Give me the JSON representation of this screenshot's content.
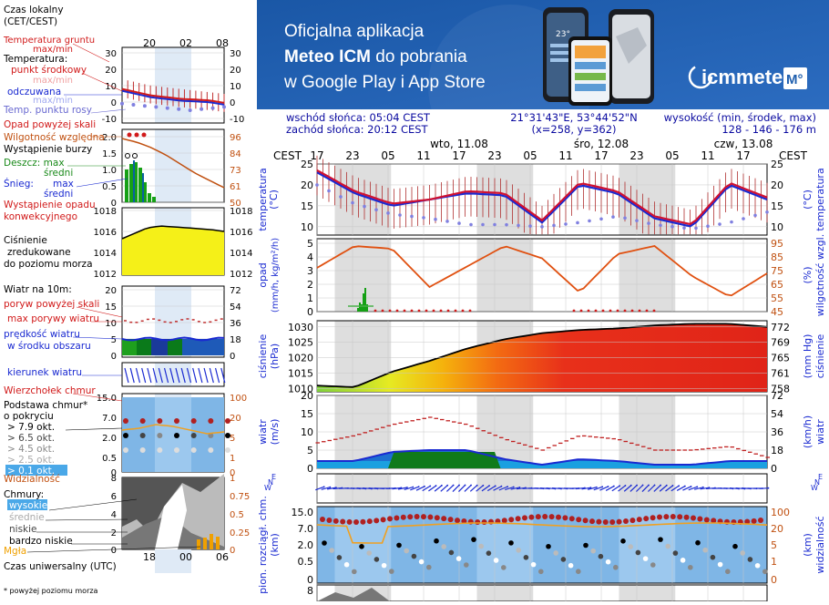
{
  "banner": {
    "line1": "Oficjalna aplikacja",
    "line2a": "Meteo ICM",
    "line2b": " do pobrania",
    "line3": "w Google Play i App Store",
    "logo_text": "icmmeteo",
    "badge": "M°",
    "phone_temp": "23°",
    "bg_color": "#1f5fae"
  },
  "info": {
    "sunrise": "wschód słońca: 05:04 CEST",
    "sunset": "zachód słońca: 20:12 CEST",
    "coords": "21°31'43\"E, 53°44'52\"N",
    "grid": "(x=258,  y=362)",
    "elev_label": "wysokość (min, środek, max)",
    "elev_values": "128 - 146 - 176 m"
  },
  "legend": {
    "time_local": "Czas lokalny",
    "time_local2": "(CET/CEST)",
    "local_ticks": [
      "20",
      "02",
      "08"
    ],
    "ground_temp": "Temperatura gruntu",
    "ground_temp2": "max/min",
    "temperature": "Temperatura:",
    "midpoint": "punkt środkowy",
    "maxmin": "max/min",
    "feels": "odczuwana",
    "feels_maxmin": "max/min",
    "dew": "Temp. punktu rosy",
    "temp_ticks_l": [
      "30",
      "20",
      "10",
      "0",
      "-10"
    ],
    "temp_ticks_r": [
      "30",
      "20",
      "10",
      "0",
      "-10"
    ],
    "precip_above": "Opad powyżej skali",
    "humidity": "Wilgotność względna",
    "storm": "Wystąpienie burzy",
    "rain": "Deszcz: max",
    "rain_avg": "średni",
    "snow": "Śnieg:",
    "snow_max": "max",
    "snow_avg": "średni",
    "conv": "Wystąpienie opadu",
    "conv2": "konwekcyjnego",
    "precip_ticks_l": [
      "2.0",
      "1.5",
      "1.0",
      "0.5",
      "0"
    ],
    "precip_ticks_r": [
      "96",
      "84",
      "73",
      "61",
      "50"
    ],
    "pressure": "Ciśnienie",
    "pressure2": "zredukowane",
    "pressure3": "do poziomu morza",
    "press_ticks_l": [
      "1018",
      "1016",
      "1014",
      "1012"
    ],
    "press_ticks_r": [
      "1018",
      "1016",
      "1014",
      "1012"
    ],
    "wind_head": "Wiatr na 10m:",
    "gust_above": "poryw powyżej skali",
    "gust_max": "max porywy wiatru",
    "wind_speed": "prędkość wiatru",
    "wind_speed2": "w środku obszaru",
    "wind_ticks_l": [
      "20",
      "15",
      "10",
      "5",
      "0"
    ],
    "wind_ticks_r": [
      "72",
      "54",
      "36",
      "18",
      "0"
    ],
    "wind_dir": "kierunek wiatru",
    "cloud_top": "Wierzchołek chmur",
    "cloud_base": "Podstawa chmur*",
    "cloud_base2": "o pokryciu",
    "okt1": "> 7.9 okt.",
    "okt2": "> 6.5 okt.",
    "okt3": "> 4.5 okt.",
    "okt4": "> 2.5 okt.",
    "okt5": "> 0.1 okt.",
    "cb_ticks_l": [
      "15.0",
      "7.0",
      "2.0",
      "0.5",
      "0"
    ],
    "cb_ticks_r": [
      "100",
      "20",
      "5",
      "1",
      "0"
    ],
    "visibility": "Widzialność",
    "clouds": "Chmury:",
    "high": "wysokie",
    "mid": "średnie",
    "low": "niskie",
    "vlow": "bardzo niskie",
    "fog": "Mgła",
    "cl_ticks_l": [
      "8",
      "6",
      "4",
      "2",
      "0"
    ],
    "cl_ticks_r": [
      "1",
      "0.75",
      "0.5",
      "0.25",
      "0"
    ],
    "utc": "Czas uniwersalny (UTC)",
    "utc_ticks": [
      "18",
      "00",
      "06"
    ],
    "footnote": "* powyżej poziomu morza"
  },
  "main": {
    "cest": "CEST",
    "days": [
      "wto, 11.08",
      "śro, 12.08",
      "czw, 13.08"
    ],
    "hour_ticks": [
      "17",
      "23",
      "05",
      "11",
      "17",
      "23",
      "05",
      "11",
      "17",
      "23",
      "05",
      "11",
      "17"
    ],
    "temp_label": "temperatura",
    "temp_unit": "(°C)",
    "temp_ticks": [
      "25",
      "20",
      "15",
      "10"
    ],
    "precip_label": "opad",
    "precip_unit": "(mm/h, kg/m²/h)",
    "precip_ticks": [
      "5",
      "4",
      "3",
      "2",
      "1",
      "0"
    ],
    "hum_label": "wilgotność wzgl.",
    "hum_unit": "(%)",
    "hum_ticks": [
      "95",
      "85",
      "75",
      "65",
      "55",
      "45"
    ],
    "press_label": "ciśnienie",
    "press_unit": "(hPa)",
    "press_ticks": [
      "1030",
      "1025",
      "1020",
      "1015",
      "1010"
    ],
    "press_unit_r": "(mm Hg)",
    "press_ticks_r": [
      "772",
      "769",
      "765",
      "761",
      "758"
    ],
    "wind_label": "wiatr",
    "wind_unit": "(m/s)",
    "wind_ticks": [
      "20",
      "15",
      "10",
      "5",
      "0"
    ],
    "wind_unit_r": "(km/h)",
    "wind_ticks_r": [
      "72",
      "54",
      "36",
      "18",
      "0"
    ],
    "cb_label": "pion. rozciągł. chm.",
    "cb_unit": "(km)",
    "cb_ticks": [
      "15.0",
      "7.0",
      "2.0",
      "0.5",
      "0"
    ],
    "vis_label": "widzialność",
    "vis_unit": "(km)",
    "vis_ticks": [
      "100",
      "20",
      "5",
      "1",
      "0"
    ],
    "cl_ticks": [
      "8"
    ]
  },
  "chart_data": [
    {
      "type": "line",
      "title": "temperatura",
      "ylabel": "(°C)",
      "ylim": [
        8,
        25
      ],
      "x_hours": [
        0,
        6,
        12,
        18,
        24,
        30,
        36,
        42,
        48,
        54,
        60,
        66,
        72
      ],
      "series": [
        {
          "name": "temperatura",
          "values": [
            23.5,
            18.5,
            15.5,
            16.5,
            18.5,
            18.0,
            11.5,
            20.5,
            18.5,
            12.5,
            10.5,
            20.5,
            17.0
          ]
        },
        {
          "name": "odczuwana",
          "values": [
            23.0,
            18.0,
            15.0,
            16.5,
            18.0,
            17.5,
            11.0,
            20.0,
            18.0,
            12.0,
            10.0,
            20.0,
            16.5
          ]
        },
        {
          "name": "punkt rosy",
          "values": [
            20.0,
            15.5,
            13.0,
            12.0,
            10.5,
            10.5,
            10.0,
            11.0,
            12.5,
            10.5,
            9.5,
            11.0,
            13.5
          ]
        }
      ]
    },
    {
      "type": "line",
      "title": "opad / wilgotność",
      "ylim": [
        0,
        5
      ],
      "series": [
        {
          "name": "wilgotność",
          "values": [
            77,
            93,
            91,
            63,
            78,
            93,
            84,
            59,
            87,
            93,
            71,
            56,
            73
          ]
        },
        {
          "name": "opad",
          "values": [
            0,
            0.6,
            0,
            0,
            0,
            0,
            0,
            0,
            0,
            0,
            0,
            0,
            0
          ]
        }
      ]
    },
    {
      "type": "area",
      "title": "ciśnienie",
      "ylabel": "(hPa)",
      "ylim": [
        1009,
        1032
      ],
      "series": [
        {
          "name": "ciśnienie",
          "values": [
            1011,
            1010.5,
            1015.5,
            1019,
            1023,
            1026,
            1028,
            1029,
            1029.5,
            1030.5,
            1031,
            1031,
            1030
          ]
        }
      ]
    },
    {
      "type": "line",
      "title": "wiatr",
      "ylabel": "(m/s)",
      "ylim": [
        0,
        20
      ],
      "series": [
        {
          "name": "prędkość",
          "values": [
            2,
            2,
            4.5,
            5,
            5,
            2.5,
            1,
            2.5,
            2,
            1,
            1,
            2,
            2
          ]
        },
        {
          "name": "porywy",
          "values": [
            7,
            9,
            12,
            14,
            12,
            8,
            5,
            9,
            8,
            5,
            5,
            6,
            3
          ]
        }
      ]
    }
  ]
}
